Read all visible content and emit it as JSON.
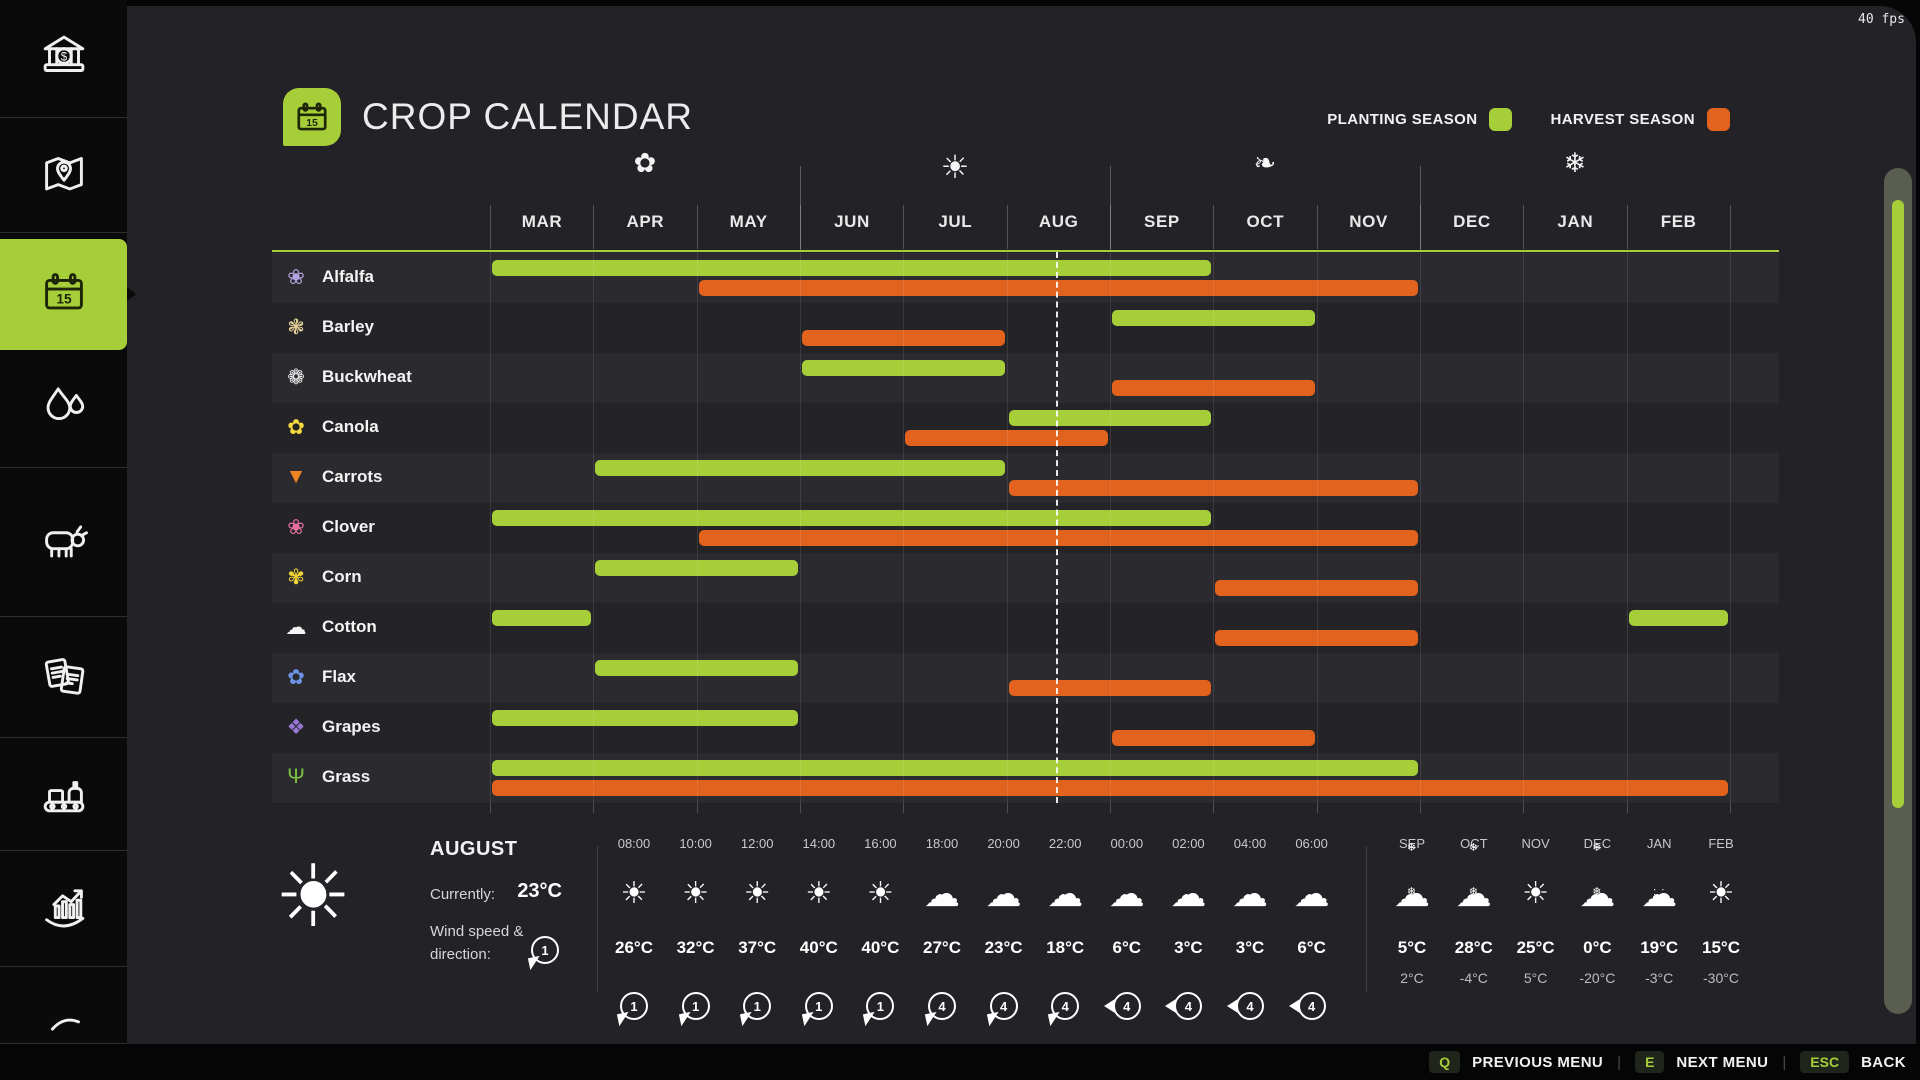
{
  "hud": {
    "fps": "40 fps"
  },
  "header": {
    "title": "CROP CALENDAR",
    "legend": [
      {
        "label": "PLANTING SEASON",
        "color": "#a6ce39"
      },
      {
        "label": "HARVEST SEASON",
        "color": "#e2631d"
      }
    ]
  },
  "sidebar": {
    "items": [
      {
        "name": "finances",
        "selected": false
      },
      {
        "name": "map",
        "selected": false
      },
      {
        "name": "crop-calendar",
        "selected": true
      },
      {
        "name": "water",
        "selected": false
      },
      {
        "name": "animals",
        "selected": false
      },
      {
        "name": "contracts",
        "selected": false
      },
      {
        "name": "production",
        "selected": false
      },
      {
        "name": "statistics",
        "selected": false
      },
      {
        "name": "more",
        "selected": false
      }
    ]
  },
  "calendar": {
    "months": [
      "MAR",
      "APR",
      "MAY",
      "JUN",
      "JUL",
      "AUG",
      "SEP",
      "OCT",
      "NOV",
      "DEC",
      "JAN",
      "FEB"
    ],
    "seasons": [
      {
        "name": "spring",
        "glyph": "✿"
      },
      {
        "name": "summer",
        "glyph": "☀"
      },
      {
        "name": "autumn",
        "glyph": "❧"
      },
      {
        "name": "winter",
        "glyph": "❄"
      }
    ],
    "colors": {
      "plant": "#a6ce39",
      "harvest": "#e2631d"
    },
    "current_time_month": "AUG",
    "crops": [
      {
        "name": "Alfalfa",
        "icon": "alfalfa-icon",
        "glyph": "❀",
        "glyph_color": "#b5a3e0",
        "plant": [
          [
            0,
            7
          ]
        ],
        "harvest": [
          [
            2,
            9
          ]
        ]
      },
      {
        "name": "Barley",
        "icon": "barley-icon",
        "glyph": "❃",
        "glyph_color": "#e5d098",
        "plant": [
          [
            6,
            8
          ]
        ],
        "harvest": [
          [
            3,
            5
          ]
        ]
      },
      {
        "name": "Buckwheat",
        "icon": "buckwheat-icon",
        "glyph": "❁",
        "glyph_color": "#f2f2f2",
        "plant": [
          [
            3,
            5
          ]
        ],
        "harvest": [
          [
            6,
            8
          ]
        ]
      },
      {
        "name": "Canola",
        "icon": "canola-icon",
        "glyph": "✿",
        "glyph_color": "#f5d93f",
        "plant": [
          [
            5,
            7
          ]
        ],
        "harvest": [
          [
            4,
            6
          ]
        ]
      },
      {
        "name": "Carrots",
        "icon": "carrots-icon",
        "glyph": "▼",
        "glyph_color": "#f08324",
        "plant": [
          [
            1,
            5
          ]
        ],
        "harvest": [
          [
            5,
            9
          ]
        ]
      },
      {
        "name": "Clover",
        "icon": "clover-icon",
        "glyph": "❀",
        "glyph_color": "#e5709f",
        "plant": [
          [
            0,
            7
          ]
        ],
        "harvest": [
          [
            2,
            9
          ]
        ]
      },
      {
        "name": "Corn",
        "icon": "corn-icon",
        "glyph": "✾",
        "glyph_color": "#f0d435",
        "plant": [
          [
            1,
            3
          ]
        ],
        "harvest": [
          [
            7,
            9
          ]
        ]
      },
      {
        "name": "Cotton",
        "icon": "cotton-icon",
        "glyph": "☁",
        "glyph_color": "#f5f5f5",
        "plant": [
          [
            0,
            1
          ],
          [
            11,
            12
          ]
        ],
        "harvest": [
          [
            7,
            9
          ]
        ]
      },
      {
        "name": "Flax",
        "icon": "flax-icon",
        "glyph": "✿",
        "glyph_color": "#6f93e8",
        "plant": [
          [
            1,
            3
          ]
        ],
        "harvest": [
          [
            5,
            7
          ]
        ]
      },
      {
        "name": "Grapes",
        "icon": "grapes-icon",
        "glyph": "❖",
        "glyph_color": "#9678d8",
        "plant": [
          [
            0,
            3
          ]
        ],
        "harvest": [
          [
            6,
            8
          ]
        ]
      },
      {
        "name": "Grass",
        "icon": "grass-icon",
        "glyph": "Ψ",
        "glyph_color": "#7cc242",
        "plant": [
          [
            0,
            9
          ]
        ],
        "harvest": [
          [
            0,
            12
          ]
        ]
      }
    ]
  },
  "weather": {
    "summary": {
      "month": "AUGUST",
      "icon": "sun",
      "currently_label": "Currently:",
      "current_temp": "23°C",
      "wind_label": "Wind speed & direction:",
      "wind_value": "1",
      "wind_dir": "sw"
    },
    "hourly": [
      {
        "time": "08:00",
        "icon": "sun",
        "temp": "26°C",
        "wind": "1",
        "wind_dir": "sw"
      },
      {
        "time": "10:00",
        "icon": "sun",
        "temp": "32°C",
        "wind": "1",
        "wind_dir": "sw"
      },
      {
        "time": "12:00",
        "icon": "sun",
        "temp": "37°C",
        "wind": "1",
        "wind_dir": "sw"
      },
      {
        "time": "14:00",
        "icon": "sun",
        "temp": "40°C",
        "wind": "1",
        "wind_dir": "sw"
      },
      {
        "time": "16:00",
        "icon": "sun",
        "temp": "40°C",
        "wind": "1",
        "wind_dir": "sw"
      },
      {
        "time": "18:00",
        "icon": "cloud",
        "temp": "27°C",
        "wind": "4",
        "wind_dir": "sw"
      },
      {
        "time": "20:00",
        "icon": "cloud",
        "temp": "23°C",
        "wind": "4",
        "wind_dir": "sw"
      },
      {
        "time": "22:00",
        "icon": "cloud",
        "temp": "18°C",
        "wind": "4",
        "wind_dir": "sw"
      },
      {
        "time": "00:00",
        "icon": "cloud",
        "temp": "6°C",
        "wind": "4",
        "wind_dir": "w"
      },
      {
        "time": "02:00",
        "icon": "cloud",
        "temp": "3°C",
        "wind": "4",
        "wind_dir": "w"
      },
      {
        "time": "04:00",
        "icon": "cloud",
        "temp": "3°C",
        "wind": "4",
        "wind_dir": "w"
      },
      {
        "time": "06:00",
        "icon": "cloud",
        "temp": "6°C",
        "wind": "4",
        "wind_dir": "w"
      }
    ],
    "monthly": [
      {
        "month": "SEP",
        "icon": "snow",
        "high": "5°C",
        "low": "2°C"
      },
      {
        "month": "OCT",
        "icon": "snow",
        "high": "28°C",
        "low": "-4°C"
      },
      {
        "month": "NOV",
        "icon": "sun",
        "high": "25°C",
        "low": "5°C"
      },
      {
        "month": "DEC",
        "icon": "snow",
        "high": "0°C",
        "low": "-20°C"
      },
      {
        "month": "JAN",
        "icon": "rain",
        "high": "19°C",
        "low": "-3°C"
      },
      {
        "month": "FEB",
        "icon": "sun",
        "high": "15°C",
        "low": "-30°C"
      }
    ]
  },
  "bottom_bar": {
    "items": [
      {
        "key": "Q",
        "label": "PREVIOUS MENU"
      },
      {
        "key": "E",
        "label": "NEXT MENU"
      },
      {
        "key": "ESC",
        "label": "BACK"
      }
    ]
  }
}
